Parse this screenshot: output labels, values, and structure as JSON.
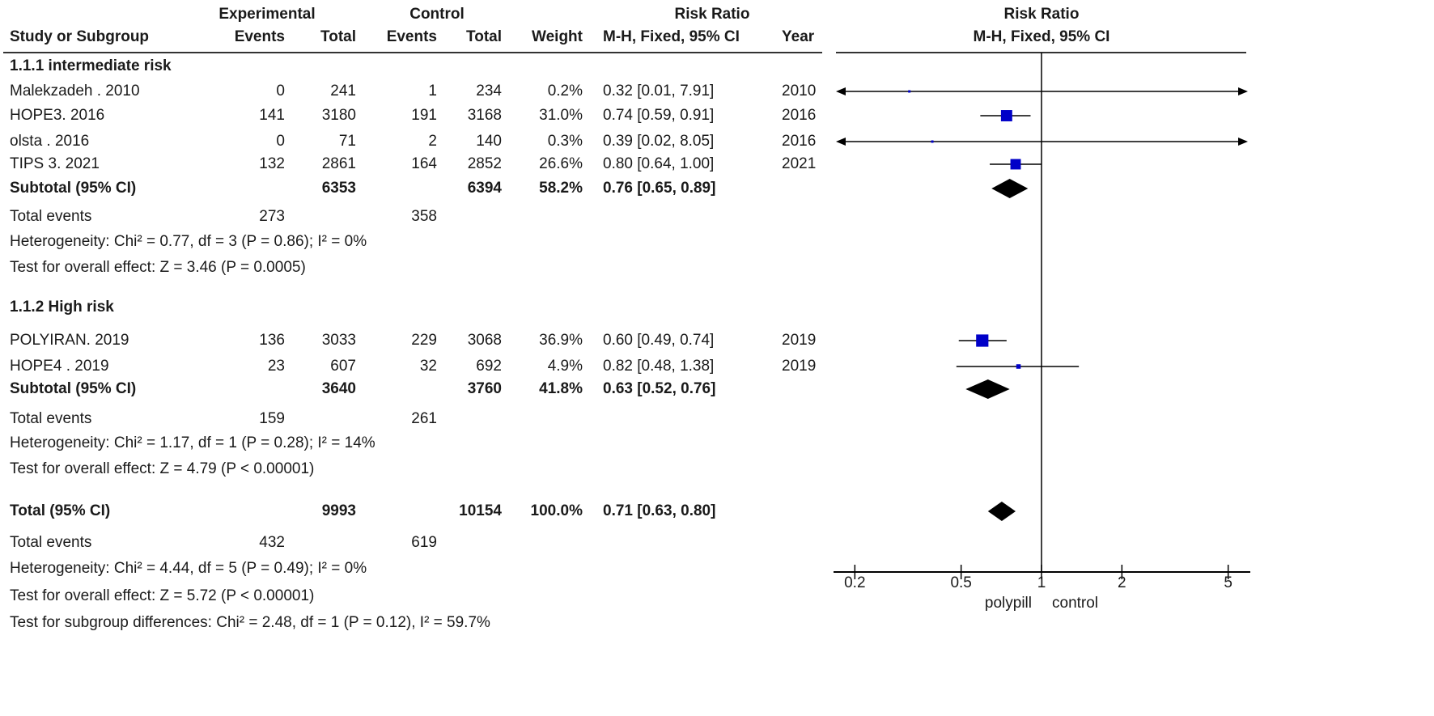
{
  "header": {
    "experimental": "Experimental",
    "control": "Control",
    "risk_ratio_left": "Risk Ratio",
    "risk_ratio_right": "Risk Ratio",
    "study_col": "Study or Subgroup",
    "events": "Events",
    "total": "Total",
    "weight": "Weight",
    "method_left": "M-H, Fixed, 95% CI",
    "year": "Year",
    "method_right": "M-H, Fixed, 95% CI"
  },
  "groups": [
    {
      "title": "1.1.1 intermediate risk",
      "studies": [
        {
          "name": "Malekzadeh . 2010",
          "exp_events": "0",
          "exp_total": "241",
          "ctrl_events": "1",
          "ctrl_total": "234",
          "weight": "0.2%",
          "rr_text": "0.32 [0.01, 7.91]",
          "year": "2010",
          "rr": 0.32,
          "lo": 0.01,
          "hi": 7.91,
          "w": 0.2
        },
        {
          "name": "HOPE3. 2016",
          "exp_events": "141",
          "exp_total": "3180",
          "ctrl_events": "191",
          "ctrl_total": "3168",
          "weight": "31.0%",
          "rr_text": "0.74 [0.59, 0.91]",
          "year": "2016",
          "rr": 0.74,
          "lo": 0.59,
          "hi": 0.91,
          "w": 31.0
        },
        {
          "name": "olsta . 2016",
          "exp_events": "0",
          "exp_total": "71",
          "ctrl_events": "2",
          "ctrl_total": "140",
          "weight": "0.3%",
          "rr_text": "0.39 [0.02, 8.05]",
          "year": "2016",
          "rr": 0.39,
          "lo": 0.02,
          "hi": 8.05,
          "w": 0.3
        },
        {
          "name": "TIPS 3. 2021",
          "exp_events": "132",
          "exp_total": "2861",
          "ctrl_events": "164",
          "ctrl_total": "2852",
          "weight": "26.6%",
          "rr_text": "0.80 [0.64, 1.00]",
          "year": "2021",
          "rr": 0.8,
          "lo": 0.64,
          "hi": 1.0,
          "w": 26.6
        }
      ],
      "subtotal": {
        "label": "Subtotal (95% CI)",
        "exp_total": "6353",
        "ctrl_total": "6394",
        "weight": "58.2%",
        "rr_text": "0.76 [0.65, 0.89]",
        "rr": 0.76,
        "lo": 0.65,
        "hi": 0.89
      },
      "total_events": {
        "label": "Total events",
        "exp": "273",
        "ctrl": "358"
      },
      "heterogeneity": "Heterogeneity: Chi² = 0.77, df = 3 (P = 0.86); I² = 0%",
      "overall_effect": "Test for overall effect: Z = 3.46 (P = 0.0005)"
    },
    {
      "title": "1.1.2 High risk",
      "studies": [
        {
          "name": "POLYIRAN. 2019",
          "exp_events": "136",
          "exp_total": "3033",
          "ctrl_events": "229",
          "ctrl_total": "3068",
          "weight": "36.9%",
          "rr_text": "0.60 [0.49, 0.74]",
          "year": "2019",
          "rr": 0.6,
          "lo": 0.49,
          "hi": 0.74,
          "w": 36.9
        },
        {
          "name": "HOPE4 . 2019",
          "exp_events": "23",
          "exp_total": "607",
          "ctrl_events": "32",
          "ctrl_total": "692",
          "weight": "4.9%",
          "rr_text": "0.82 [0.48, 1.38]",
          "year": "2019",
          "rr": 0.82,
          "lo": 0.48,
          "hi": 1.38,
          "w": 4.9
        }
      ],
      "subtotal": {
        "label": "Subtotal (95% CI)",
        "exp_total": "3640",
        "ctrl_total": "3760",
        "weight": "41.8%",
        "rr_text": "0.63 [0.52, 0.76]",
        "rr": 0.63,
        "lo": 0.52,
        "hi": 0.76
      },
      "total_events": {
        "label": "Total events",
        "exp": "159",
        "ctrl": "261"
      },
      "heterogeneity": "Heterogeneity: Chi² = 1.17, df = 1 (P = 0.28); I² = 14%",
      "overall_effect": "Test for overall effect: Z = 4.79 (P < 0.00001)"
    }
  ],
  "overall": {
    "label": "Total (95% CI)",
    "exp_total": "9993",
    "ctrl_total": "10154",
    "weight": "100.0%",
    "rr_text": "0.71 [0.63, 0.80]",
    "rr": 0.71,
    "lo": 0.63,
    "hi": 0.8,
    "total_events": {
      "label": "Total events",
      "exp": "432",
      "ctrl": "619"
    },
    "heterogeneity": "Heterogeneity: Chi² = 4.44, df = 5 (P = 0.49); I² = 0%",
    "overall_effect": "Test for overall effect: Z = 5.72 (P < 0.00001)",
    "subgroup_diff": "Test for subgroup differences: Chi² = 2.48, df = 1 (P = 0.12), I² = 59.7%"
  },
  "chart_data": {
    "type": "forest",
    "x_scale": "log",
    "xlim": [
      0.2,
      5
    ],
    "x_ticks": [
      "0.2",
      "0.5",
      "1",
      "2",
      "5"
    ],
    "x_tick_values": [
      0.2,
      0.5,
      1,
      2,
      5
    ],
    "reference_line": 1,
    "favours_left": "polypill",
    "favours_right": "control",
    "colors": {
      "study_marker": "#0000c8",
      "summary_diamond": "#000000",
      "lines": "#000000"
    }
  }
}
